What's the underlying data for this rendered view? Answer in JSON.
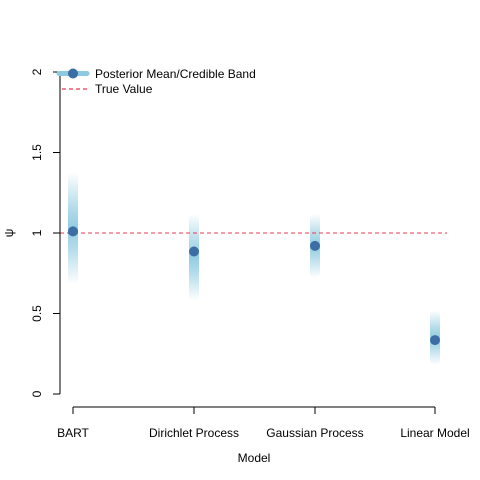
{
  "chart_data": {
    "type": "scatter",
    "title": "",
    "xlabel": "Model",
    "ylabel": "ψ",
    "categories": [
      "BART",
      "Dirichlet Process",
      "Gaussian Process",
      "Linear Model"
    ],
    "ylim": [
      0,
      2
    ],
    "yticks": [
      0,
      0.5,
      1,
      1.5,
      2
    ],
    "ytick_labels": [
      "0",
      "0.5",
      "1",
      "1.5",
      "2"
    ],
    "grid": false,
    "legend": {
      "position": "top-left",
      "entries": [
        {
          "label": "Posterior Mean/Credible Band",
          "kind": "point-band"
        },
        {
          "label": "True Value",
          "kind": "dashed-line"
        }
      ]
    },
    "series": [
      {
        "name": "Posterior Mean/Credible Band",
        "values": [
          1.01,
          0.885,
          0.92,
          0.335
        ],
        "band_low": [
          0.68,
          0.58,
          0.72,
          0.18
        ],
        "band_high": [
          1.38,
          1.12,
          1.12,
          0.52
        ]
      }
    ],
    "reference_line": {
      "name": "True Value",
      "value": 1.0
    },
    "colors": {
      "point": "#3a6ea5",
      "band": "#7fc3dc",
      "reference": "#e8384f",
      "axis": "#000000"
    }
  }
}
